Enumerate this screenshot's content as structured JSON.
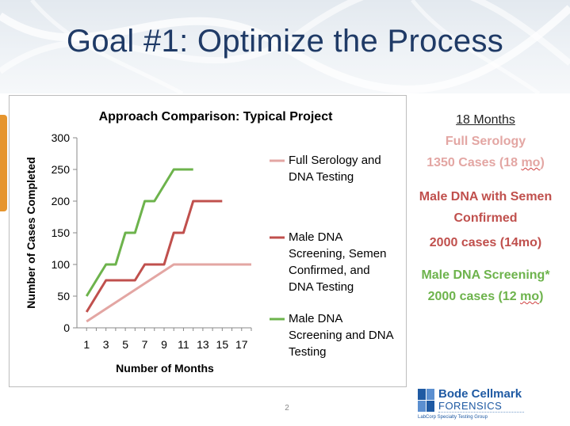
{
  "slide": {
    "title": "Goal #1: Optimize the Process",
    "page_number": "2"
  },
  "colors": {
    "title": "#1f3a66",
    "serology": "#e3a6a3",
    "male_dna_semen": "#c0504d",
    "male_dna_screening": "#6db34c",
    "accent_bar": "#e6952e"
  },
  "chart_data": {
    "type": "line",
    "title": "Approach Comparison: Typical Project",
    "xlabel": "Number of Months",
    "ylabel": "Number of Cases Completed",
    "xlim": [
      0,
      18
    ],
    "ylim": [
      0,
      300
    ],
    "x_ticks": [
      1,
      3,
      5,
      7,
      9,
      11,
      13,
      15,
      17
    ],
    "y_ticks": [
      0,
      50,
      100,
      150,
      200,
      250,
      300
    ],
    "grid": false,
    "legend_position": "right",
    "series": [
      {
        "name": "Full Serology and DNA Testing",
        "legend_lines": [
          "Full Serology and",
          "DNA Testing"
        ],
        "color": "#e3a6a3",
        "points": [
          [
            1,
            10
          ],
          [
            10,
            100
          ],
          [
            18,
            100
          ]
        ]
      },
      {
        "name": "Male DNA Screening, Semen Confirmed, and DNA Testing",
        "legend_lines": [
          "Male DNA",
          "Screening, Semen",
          "Confirmed, and",
          "DNA Testing"
        ],
        "color": "#c0504d",
        "points": [
          [
            1,
            25
          ],
          [
            3,
            75
          ],
          [
            5,
            75
          ],
          [
            6,
            75
          ],
          [
            7,
            100
          ],
          [
            9,
            100
          ],
          [
            10,
            150
          ],
          [
            11,
            150
          ],
          [
            12,
            200
          ],
          [
            15,
            200
          ]
        ]
      },
      {
        "name": "Male DNA Screening and DNA Testing",
        "legend_lines": [
          "Male DNA",
          "Screening and DNA",
          "Testing"
        ],
        "color": "#6db34c",
        "points": [
          [
            1,
            50
          ],
          [
            3,
            100
          ],
          [
            4,
            100
          ],
          [
            5,
            150
          ],
          [
            6,
            150
          ],
          [
            7,
            200
          ],
          [
            8,
            200
          ],
          [
            9,
            225
          ],
          [
            10,
            250
          ],
          [
            11,
            250
          ],
          [
            12,
            250
          ]
        ]
      }
    ]
  },
  "summary": {
    "heading": "18 Months",
    "serology_label": "Full Serology",
    "serology_value_pre": "1350 Cases (18 ",
    "serology_value_mark": "mo",
    "serology_value_post": ")",
    "semen_label_line1": "Male DNA with Semen",
    "semen_label_line2": "Confirmed",
    "semen_value": "2000 cases (14mo)",
    "screening_label": "Male DNA Screening*",
    "screening_value_pre": "2000 cases (12 ",
    "screening_value_mark": "mo",
    "screening_value_post": ")"
  },
  "logo": {
    "brand": "Bode Cellmark",
    "sub": "FORENSICS",
    "tagline": "LabCorp Specialty Testing Group"
  }
}
